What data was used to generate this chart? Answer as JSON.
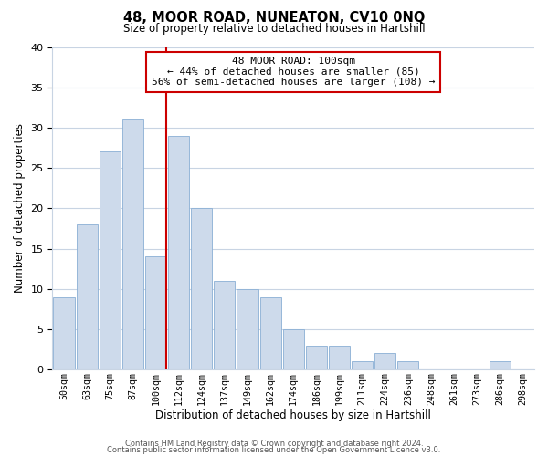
{
  "title": "48, MOOR ROAD, NUNEATON, CV10 0NQ",
  "subtitle": "Size of property relative to detached houses in Hartshill",
  "xlabel": "Distribution of detached houses by size in Hartshill",
  "ylabel": "Number of detached properties",
  "categories": [
    "50sqm",
    "63sqm",
    "75sqm",
    "87sqm",
    "100sqm",
    "112sqm",
    "124sqm",
    "137sqm",
    "149sqm",
    "162sqm",
    "174sqm",
    "186sqm",
    "199sqm",
    "211sqm",
    "224sqm",
    "236sqm",
    "248sqm",
    "261sqm",
    "273sqm",
    "286sqm",
    "298sqm"
  ],
  "values": [
    9,
    18,
    27,
    31,
    14,
    29,
    20,
    11,
    10,
    9,
    5,
    3,
    3,
    1,
    2,
    1,
    0,
    0,
    0,
    1,
    0
  ],
  "bar_color": "#cddaeb",
  "bar_edge_color": "#8aafd4",
  "vline_x_index": 4,
  "vline_color": "#cc0000",
  "annotation_line1": "48 MOOR ROAD: 100sqm",
  "annotation_line2": "← 44% of detached houses are smaller (85)",
  "annotation_line3": "56% of semi-detached houses are larger (108) →",
  "annotation_box_color": "#ffffff",
  "annotation_box_edge": "#cc0000",
  "ylim": [
    0,
    40
  ],
  "yticks": [
    0,
    5,
    10,
    15,
    20,
    25,
    30,
    35,
    40
  ],
  "footer1": "Contains HM Land Registry data © Crown copyright and database right 2024.",
  "footer2": "Contains public sector information licensed under the Open Government Licence v3.0.",
  "background_color": "#ffffff",
  "grid_color": "#c8d4e3"
}
